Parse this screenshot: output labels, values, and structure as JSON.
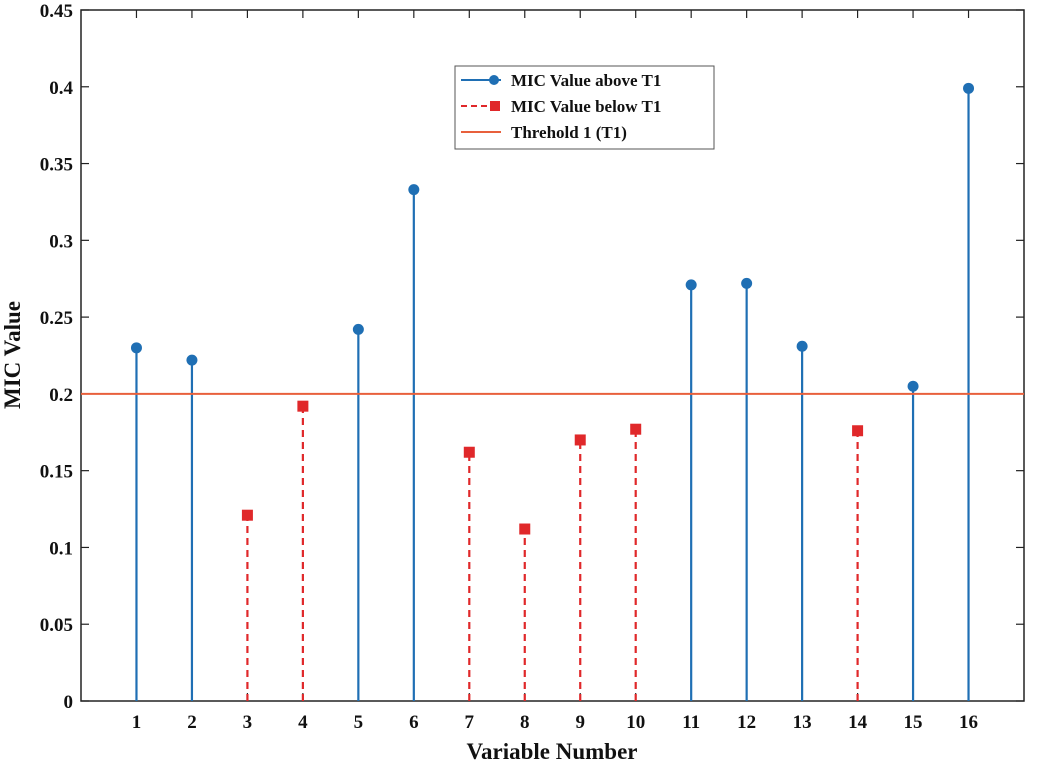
{
  "chart_data": {
    "type": "stem",
    "xlabel": "Variable Number",
    "ylabel": "MIC Value",
    "xlim": [
      0,
      17
    ],
    "ylim": [
      0,
      0.45
    ],
    "x_ticks": [
      "1",
      "2",
      "3",
      "4",
      "5",
      "6",
      "7",
      "8",
      "9",
      "10",
      "11",
      "12",
      "13",
      "14",
      "15",
      "16"
    ],
    "y_ticks": [
      "0",
      "0.05",
      "0.1",
      "0.15",
      "0.2",
      "0.25",
      "0.3",
      "0.35",
      "0.4",
      "0.45"
    ],
    "grid": false,
    "legend_position": "top-center",
    "threshold": {
      "name": "Threhold 1 (T1)",
      "value": 0.2,
      "color": "#e8603c"
    },
    "series": [
      {
        "name": "MIC Value above T1",
        "color": "#1f6fb4",
        "marker": "circle",
        "line_style": "solid",
        "x": [
          1,
          2,
          5,
          6,
          11,
          12,
          13,
          15,
          16
        ],
        "values": [
          0.23,
          0.222,
          0.242,
          0.333,
          0.271,
          0.272,
          0.231,
          0.205,
          0.399
        ]
      },
      {
        "name": "MIC Value below T1",
        "color": "#e0282a",
        "marker": "square",
        "line_style": "dashed",
        "x": [
          3,
          4,
          7,
          8,
          9,
          10,
          14
        ],
        "values": [
          0.121,
          0.192,
          0.162,
          0.112,
          0.17,
          0.177,
          0.176
        ]
      }
    ]
  }
}
